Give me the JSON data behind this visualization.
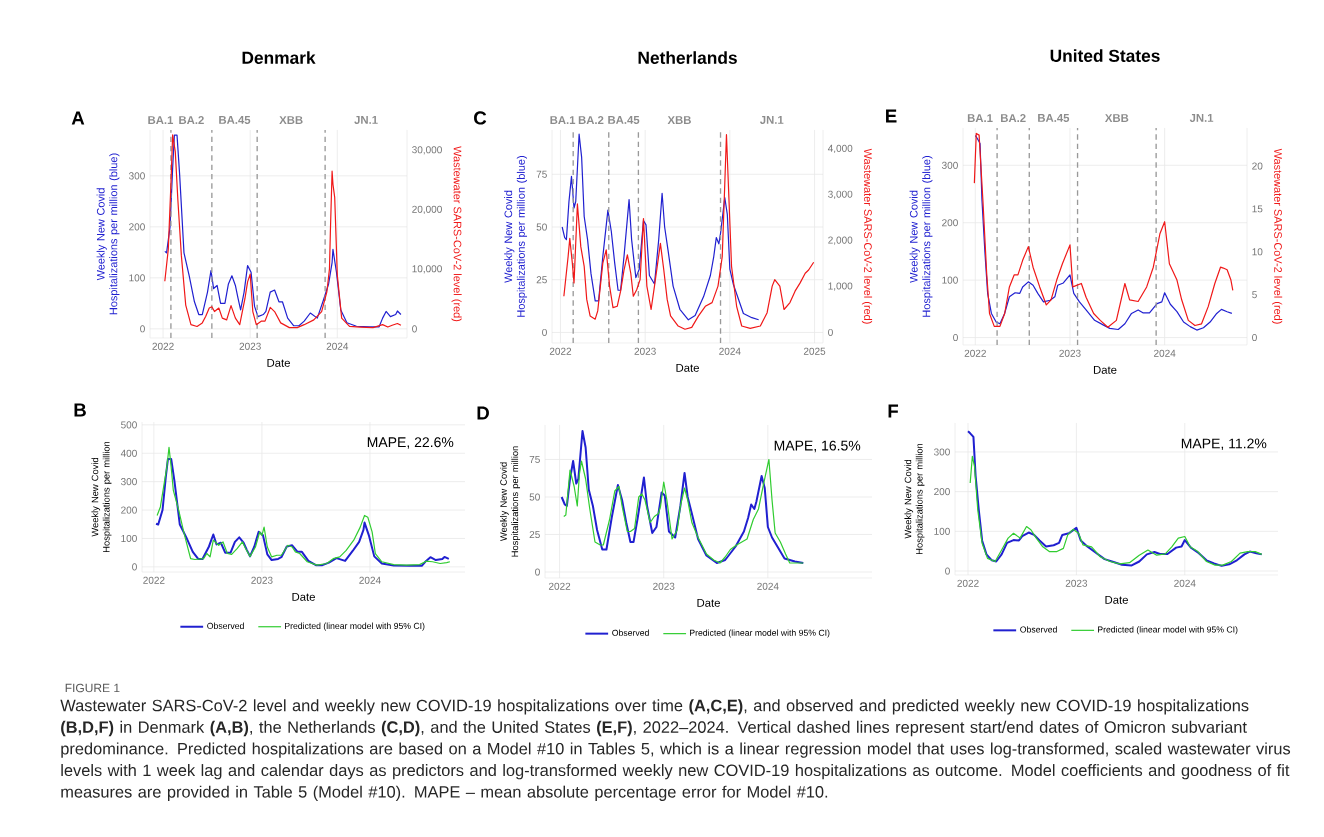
{
  "chart_data": [
    {
      "type": "line",
      "title": "Denmark",
      "xlabel": "Date",
      "ylabel": "Weekly New Covid Hospitalizations per million (blue)",
      "y2label": "Wastewater SARS-CoV-2 level (red)",
      "xlim": [
        2021.85,
        2024.8
      ],
      "xticks": [
        2022,
        2023,
        2024
      ],
      "ylim": [
        -18,
        390
      ],
      "yticks": [
        0,
        100,
        200,
        300
      ],
      "y2lim": [
        -1540,
        33420
      ],
      "y2ticks": [
        0,
        {
          "value": 10000,
          "label": "10,000"
        },
        {
          "value": 20000,
          "label": "20,000"
        },
        {
          "value": 30000,
          "label": "30,000"
        }
      ],
      "grid": true,
      "series": [
        {
          "color": "#2020d0",
          "x": [
            2022.02,
            2022.04,
            2022.08,
            2022.11,
            2022.13,
            2022.16,
            2022.19,
            2022.24,
            2022.3,
            2022.36,
            2022.41,
            2022.45,
            2022.51,
            2022.55,
            2022.58,
            2022.62,
            2022.66,
            2022.71,
            2022.75,
            2022.79,
            2022.83,
            2022.86,
            2022.89,
            2022.93,
            2022.97,
            2023.01,
            2023.05,
            2023.09,
            2023.15,
            2023.18,
            2023.23,
            2023.28,
            2023.33,
            2023.37,
            2023.43,
            2023.5,
            2023.56,
            2023.62,
            2023.69,
            2023.77,
            2023.84,
            2023.9,
            2023.94,
            2023.95,
            2023.99,
            2024.04,
            2024.11,
            2024.22,
            2024.37,
            2024.48,
            2024.52,
            2024.56,
            2024.61,
            2024.67,
            2024.69,
            2024.73
          ],
          "values": [
            152,
            149,
            200,
            316,
            380,
            380,
            303,
            149,
            104,
            53,
            28,
            28,
            72,
            114,
            79,
            85,
            50,
            50,
            88,
            104,
            85,
            60,
            37,
            72,
            124,
            111,
            44,
            24,
            28,
            34,
            72,
            76,
            53,
            53,
            21,
            6,
            6,
            15,
            31,
            21,
            56,
            88,
            130,
            156,
            111,
            37,
            12,
            5,
            4,
            4,
            21,
            34,
            24,
            28,
            35,
            28
          ]
        },
        {
          "color": "#f01818",
          "axis": "y2",
          "x": [
            2022.02,
            2022.06,
            2022.09,
            2022.11,
            2022.14,
            2022.17,
            2022.21,
            2022.26,
            2022.32,
            2022.39,
            2022.45,
            2022.49,
            2022.53,
            2022.56,
            2022.59,
            2022.64,
            2022.68,
            2022.73,
            2022.78,
            2022.83,
            2022.88,
            2022.94,
            2022.97,
            2023.0,
            2023.03,
            2023.07,
            2023.13,
            2023.17,
            2023.23,
            2023.28,
            2023.35,
            2023.45,
            2023.54,
            2023.62,
            2023.73,
            2023.82,
            2023.88,
            2023.91,
            2023.92,
            2023.94,
            2023.95,
            2023.97,
            2024.0,
            2024.05,
            2024.14,
            2024.26,
            2024.41,
            2024.52,
            2024.58,
            2024.63,
            2024.69,
            2024.73
          ],
          "values": [
            8000,
            13400,
            24300,
            32600,
            29800,
            21600,
            12300,
            4000,
            700,
            400,
            1000,
            2100,
            3500,
            3700,
            2900,
            3500,
            1800,
            1500,
            3900,
            1800,
            700,
            5100,
            7900,
            9200,
            2900,
            700,
            1300,
            1300,
            3600,
            2900,
            1000,
            200,
            200,
            700,
            1500,
            2900,
            6200,
            10100,
            16100,
            26500,
            24300,
            22100,
            9000,
            1800,
            400,
            300,
            200,
            700,
            300,
            600,
            900,
            600
          ]
        }
      ],
      "ref_lines": [
        {
          "axis": "x",
          "value": 2022.09,
          "line_style": "dashed",
          "color": "#999999"
        },
        {
          "axis": "x",
          "value": 2022.56,
          "line_style": "dashed",
          "color": "#999999"
        },
        {
          "axis": "x",
          "value": 2023.08,
          "line_style": "dashed",
          "color": "#999999"
        },
        {
          "axis": "x",
          "value": 2023.86,
          "line_style": "dashed",
          "color": "#999999"
        }
      ],
      "annotations": [
        "A",
        "BA.1",
        "BA.2",
        "BA.45",
        "XBB",
        "JN.1"
      ]
    },
    {
      "type": "line",
      "title": "Netherlands",
      "xlabel": "Date",
      "ylabel": "Weekly New Covid Hospitalizations per million (blue)",
      "y2label": "Wastewater SARS-CoV-2 level (red)",
      "xlim": [
        2021.9,
        2025.1
      ],
      "xticks": [
        2022,
        2023,
        2024,
        2025
      ],
      "ylim": [
        -5,
        96
      ],
      "yticks": [
        0,
        25,
        50,
        75
      ],
      "y2lim": [
        -230,
        4412
      ],
      "y2ticks": [
        0,
        {
          "value": 1000,
          "label": "1,000"
        },
        {
          "value": 2000,
          "label": "2,000"
        },
        {
          "value": 3000,
          "label": "3,000"
        },
        {
          "value": 4000,
          "label": "4,000"
        }
      ],
      "grid": true,
      "series": [
        {
          "color": "#2020d0",
          "x": [
            2022.02,
            2022.05,
            2022.07,
            2022.1,
            2022.13,
            2022.16,
            2022.18,
            2022.22,
            2022.25,
            2022.28,
            2022.32,
            2022.36,
            2022.41,
            2022.45,
            2022.5,
            2022.56,
            2022.6,
            2022.64,
            2022.68,
            2022.71,
            2022.75,
            2022.81,
            2022.84,
            2022.89,
            2022.93,
            2022.98,
            2023.01,
            2023.05,
            2023.11,
            2023.16,
            2023.2,
            2023.23,
            2023.27,
            2023.33,
            2023.41,
            2023.51,
            2023.59,
            2023.69,
            2023.77,
            2023.81,
            2023.84,
            2023.87,
            2023.89,
            2023.94,
            2023.97,
            2024.0,
            2024.04,
            2024.1,
            2024.16,
            2024.26,
            2024.34
          ],
          "values": [
            50,
            45,
            44,
            62,
            74,
            59,
            62,
            94,
            83,
            55,
            44,
            28,
            15,
            15,
            36,
            58,
            48,
            33,
            20,
            20,
            36,
            63,
            44,
            26,
            30,
            53,
            51,
            27,
            23,
            44,
            66,
            50,
            39,
            22,
            11,
            6,
            8,
            17,
            27,
            36,
            45,
            42,
            47,
            64,
            56,
            30,
            23,
            16,
            9,
            7,
            6
          ]
        },
        {
          "color": "#f01818",
          "axis": "y2",
          "x": [
            2022.04,
            2022.09,
            2022.11,
            2022.14,
            2022.16,
            2022.2,
            2022.24,
            2022.28,
            2022.31,
            2022.35,
            2022.41,
            2022.44,
            2022.5,
            2022.54,
            2022.58,
            2022.62,
            2022.67,
            2022.71,
            2022.75,
            2022.79,
            2022.83,
            2022.86,
            2022.9,
            2022.94,
            2022.98,
            2023.02,
            2023.07,
            2023.11,
            2023.18,
            2023.22,
            2023.26,
            2023.3,
            2023.39,
            2023.47,
            2023.55,
            2023.63,
            2023.71,
            2023.79,
            2023.86,
            2023.91,
            2023.94,
            2023.96,
            2023.99,
            2024.02,
            2024.08,
            2024.14,
            2024.24,
            2024.36,
            2024.44,
            2024.5,
            2024.53,
            2024.59,
            2024.64,
            2024.71,
            2024.77,
            2024.83,
            2024.89,
            2024.93,
            2024.99
          ],
          "values": [
            790,
            1650,
            2050,
            1510,
            1080,
            2800,
            1870,
            1440,
            720,
            360,
            290,
            470,
            1510,
            1800,
            1010,
            540,
            570,
            900,
            1360,
            1690,
            1290,
            790,
            930,
            1150,
            2480,
            1010,
            500,
            1010,
            1940,
            1360,
            720,
            360,
            140,
            70,
            110,
            360,
            570,
            650,
            1010,
            1650,
            3230,
            4310,
            2870,
            1440,
            570,
            140,
            90,
            140,
            430,
            1010,
            1150,
            1010,
            500,
            650,
            900,
            1080,
            1290,
            1360,
            1530
          ]
        }
      ],
      "ref_lines": [
        {
          "axis": "x",
          "value": 2022.15,
          "line_style": "dashed",
          "color": "#999999"
        },
        {
          "axis": "x",
          "value": 2022.57,
          "line_style": "dashed",
          "color": "#999999"
        },
        {
          "axis": "x",
          "value": 2022.92,
          "line_style": "dashed",
          "color": "#999999"
        },
        {
          "axis": "x",
          "value": 2023.89,
          "line_style": "dashed",
          "color": "#999999"
        }
      ],
      "annotations": [
        "C",
        "BA.1",
        "BA.2",
        "BA.45",
        "XBB",
        "JN.1"
      ]
    },
    {
      "type": "line",
      "title": "United States",
      "xlabel": "Date",
      "ylabel": "Weekly New Covid Hospitalizations per million (blue)",
      "y2label": "Wastewater SARS-CoV-2 level (red)",
      "xlim": [
        2021.87,
        2024.87
      ],
      "xticks": [
        2022,
        2023,
        2024
      ],
      "ylim": [
        -13,
        365
      ],
      "yticks": [
        0,
        100,
        200,
        300
      ],
      "y2lim": [
        -0.87,
        24.43
      ],
      "y2ticks": [
        0,
        5,
        10,
        15,
        20
      ],
      "grid": true,
      "series": [
        {
          "color": "#2020d0",
          "x": [
            2022.0,
            2022.02,
            2022.05,
            2022.07,
            2022.1,
            2022.13,
            2022.17,
            2022.22,
            2022.26,
            2022.31,
            2022.36,
            2022.42,
            2022.47,
            2022.5,
            2022.56,
            2022.61,
            2022.66,
            2022.72,
            2022.79,
            2022.84,
            2022.87,
            2022.93,
            2023.0,
            2023.04,
            2023.1,
            2023.17,
            2023.26,
            2023.35,
            2023.42,
            2023.51,
            2023.58,
            2023.65,
            2023.72,
            2023.77,
            2023.84,
            2023.92,
            2023.97,
            2024.0,
            2024.06,
            2024.13,
            2024.2,
            2024.27,
            2024.34,
            2024.41,
            2024.48,
            2024.55,
            2024.6,
            2024.66,
            2024.71
          ],
          "values": [
            352,
            347,
            338,
            240,
            152,
            77,
            42,
            27,
            24,
            42,
            71,
            78,
            77,
            88,
            97,
            91,
            77,
            62,
            65,
            71,
            91,
            95,
            109,
            77,
            62,
            48,
            30,
            22,
            16,
            14,
            24,
            42,
            48,
            43,
            43,
            59,
            62,
            78,
            58,
            45,
            27,
            19,
            13,
            17,
            27,
            42,
            49,
            45,
            42
          ]
        },
        {
          "color": "#f01818",
          "axis": "y2",
          "x": [
            2021.99,
            2022.01,
            2022.04,
            2022.08,
            2022.12,
            2022.15,
            2022.2,
            2022.26,
            2022.31,
            2022.36,
            2022.41,
            2022.45,
            2022.5,
            2022.56,
            2022.61,
            2022.68,
            2022.75,
            2022.8,
            2022.86,
            2022.92,
            2023.0,
            2023.03,
            2023.12,
            2023.17,
            2023.25,
            2023.32,
            2023.4,
            2023.49,
            2023.58,
            2023.63,
            2023.72,
            2023.81,
            2023.88,
            2023.95,
            2024.0,
            2024.05,
            2024.13,
            2024.18,
            2024.25,
            2024.32,
            2024.39,
            2024.46,
            2024.53,
            2024.59,
            2024.62,
            2024.66,
            2024.7,
            2024.72
          ],
          "values": [
            18,
            23.8,
            23.6,
            16,
            7.5,
            2.8,
            1.3,
            1.3,
            2.8,
            5.9,
            7.3,
            7.3,
            9,
            10.6,
            8.2,
            5.9,
            3.8,
            4.4,
            6.7,
            8.6,
            10.8,
            5.9,
            6.3,
            4.7,
            2.8,
            2,
            1.2,
            2,
            6.3,
            4.4,
            4.2,
            5.9,
            8.2,
            12.1,
            13.5,
            8.6,
            6.7,
            4.4,
            2,
            1.4,
            1.6,
            3.6,
            6.3,
            8.2,
            8.1,
            7.9,
            6.7,
            5.5
          ]
        }
      ],
      "ref_lines": [
        {
          "axis": "x",
          "value": 2022.23,
          "line_style": "dashed",
          "color": "#999999"
        },
        {
          "axis": "x",
          "value": 2022.57,
          "line_style": "dashed",
          "color": "#999999"
        },
        {
          "axis": "x",
          "value": 2023.08,
          "line_style": "dashed",
          "color": "#999999"
        },
        {
          "axis": "x",
          "value": 2023.91,
          "line_style": "dashed",
          "color": "#999999"
        }
      ],
      "annotations": [
        "E",
        "BA.1",
        "BA.2",
        "BA.45",
        "XBB",
        "JN.1"
      ]
    },
    {
      "type": "line",
      "xlabel": "Date",
      "ylabel": "Weekly New Covid Hospitalizations per million",
      "xlim": [
        2021.89,
        2024.88
      ],
      "xticks": [
        2022,
        2023,
        2024
      ],
      "ylim": [
        -18,
        510
      ],
      "yticks": [
        0,
        100,
        200,
        300,
        400,
        500
      ],
      "grid": true,
      "legend": "bottom",
      "series": [
        {
          "name": "Observed",
          "color": "#2020d0",
          "x": [
            2022.02,
            2022.04,
            2022.08,
            2022.11,
            2022.13,
            2022.16,
            2022.19,
            2022.24,
            2022.3,
            2022.36,
            2022.41,
            2022.45,
            2022.51,
            2022.55,
            2022.58,
            2022.62,
            2022.66,
            2022.71,
            2022.75,
            2022.79,
            2022.83,
            2022.86,
            2022.89,
            2022.93,
            2022.97,
            2023.01,
            2023.05,
            2023.09,
            2023.15,
            2023.18,
            2023.23,
            2023.28,
            2023.33,
            2023.37,
            2023.43,
            2023.5,
            2023.56,
            2023.62,
            2023.69,
            2023.77,
            2023.84,
            2023.9,
            2023.94,
            2023.95,
            2023.99,
            2024.04,
            2024.11,
            2024.22,
            2024.37,
            2024.48,
            2024.52,
            2024.56,
            2024.61,
            2024.67,
            2024.69,
            2024.73
          ],
          "values": [
            152,
            149,
            200,
            316,
            380,
            380,
            303,
            149,
            104,
            53,
            28,
            28,
            72,
            114,
            79,
            85,
            50,
            50,
            88,
            104,
            85,
            60,
            37,
            72,
            124,
            111,
            44,
            24,
            28,
            34,
            72,
            76,
            53,
            53,
            21,
            6,
            6,
            15,
            31,
            21,
            56,
            88,
            130,
            156,
            111,
            37,
            12,
            5,
            4,
            4,
            21,
            34,
            24,
            28,
            35,
            28
          ]
        },
        {
          "name": "Predicted (linear model with 95% CI)",
          "color": "#30cc30",
          "x": [
            2022.03,
            2022.06,
            2022.09,
            2022.12,
            2022.14,
            2022.16,
            2022.18,
            2022.23,
            2022.28,
            2022.34,
            2022.38,
            2022.46,
            2022.49,
            2022.52,
            2022.55,
            2022.6,
            2022.64,
            2022.68,
            2022.72,
            2022.77,
            2022.82,
            2022.85,
            2022.89,
            2022.94,
            2022.98,
            2023.0,
            2023.02,
            2023.05,
            2023.09,
            2023.14,
            2023.18,
            2023.24,
            2023.28,
            2023.31,
            2023.35,
            2023.42,
            2023.51,
            2023.6,
            2023.66,
            2023.72,
            2023.78,
            2023.85,
            2023.91,
            2023.95,
            2023.98,
            2024.02,
            2024.05,
            2024.11,
            2024.22,
            2024.34,
            2024.46,
            2024.52,
            2024.58,
            2024.65,
            2024.71,
            2024.74
          ],
          "values": [
            181,
            211,
            281,
            351,
            421,
            351,
            269,
            199,
            117,
            29,
            26,
            29,
            47,
            35,
            94,
            76,
            88,
            47,
            44,
            64,
            88,
            64,
            37,
            70,
            123,
            111,
            140,
            70,
            35,
            41,
            41,
            76,
            70,
            53,
            47,
            18,
            6,
            12,
            29,
            35,
            58,
            94,
            140,
            181,
            175,
            123,
            47,
            18,
            8,
            6,
            8,
            20,
            18,
            12,
            15,
            18
          ]
        }
      ],
      "annotations": [
        "B",
        "MAPE, 22.6%"
      ]
    },
    {
      "type": "line",
      "xlabel": "Date",
      "ylabel": "Weekly New Covid Hospitalizations per million",
      "xlim": [
        2021.86,
        2025.0
      ],
      "xticks": [
        2022,
        2023,
        2024
      ],
      "ylim": [
        -4,
        98
      ],
      "yticks": [
        0,
        25,
        50,
        75
      ],
      "grid": true,
      "legend": "bottom",
      "series": [
        {
          "name": "Observed",
          "color": "#2020d0",
          "x": [
            2022.02,
            2022.05,
            2022.07,
            2022.1,
            2022.13,
            2022.16,
            2022.18,
            2022.22,
            2022.25,
            2022.28,
            2022.32,
            2022.36,
            2022.41,
            2022.45,
            2022.5,
            2022.56,
            2022.6,
            2022.64,
            2022.68,
            2022.71,
            2022.75,
            2022.81,
            2022.84,
            2022.89,
            2022.93,
            2022.98,
            2023.01,
            2023.05,
            2023.11,
            2023.16,
            2023.2,
            2023.23,
            2023.27,
            2023.33,
            2023.41,
            2023.51,
            2023.59,
            2023.69,
            2023.77,
            2023.81,
            2023.84,
            2023.87,
            2023.89,
            2023.94,
            2023.97,
            2024.0,
            2024.04,
            2024.1,
            2024.16,
            2024.26,
            2024.34
          ],
          "values": [
            50,
            45,
            44,
            62,
            74,
            59,
            62,
            94,
            83,
            55,
            44,
            28,
            15,
            15,
            36,
            58,
            48,
            33,
            20,
            20,
            36,
            63,
            44,
            26,
            30,
            53,
            51,
            27,
            23,
            44,
            66,
            50,
            39,
            22,
            11,
            6,
            8,
            17,
            27,
            36,
            45,
            42,
            47,
            64,
            56,
            30,
            23,
            16,
            9,
            7,
            6
          ]
        },
        {
          "name": "Predicted (linear model with 95% CI)",
          "color": "#30cc30",
          "x": [
            2022.04,
            2022.06,
            2022.1,
            2022.14,
            2022.17,
            2022.19,
            2022.21,
            2022.25,
            2022.29,
            2022.34,
            2022.39,
            2022.42,
            2022.48,
            2022.53,
            2022.57,
            2022.6,
            2022.65,
            2022.68,
            2022.72,
            2022.76,
            2022.79,
            2022.82,
            2022.87,
            2022.91,
            2022.95,
            2022.97,
            2023.0,
            2023.03,
            2023.08,
            2023.13,
            2023.16,
            2023.2,
            2023.23,
            2023.27,
            2023.33,
            2023.41,
            2023.48,
            2023.54,
            2023.59,
            2023.64,
            2023.7,
            2023.8,
            2023.86,
            2023.91,
            2023.96,
            2024.01,
            2024.04,
            2024.07,
            2024.12,
            2024.17,
            2024.21,
            2024.28,
            2024.34
          ],
          "values": [
            37,
            38,
            68,
            57,
            44,
            65,
            74,
            62,
            42,
            20,
            18,
            18,
            35,
            54,
            57,
            44,
            27,
            27,
            29,
            50,
            52,
            48,
            33,
            37,
            39,
            44,
            60,
            48,
            22,
            28,
            44,
            56,
            48,
            33,
            23,
            12,
            8,
            6,
            10,
            15,
            18,
            22,
            35,
            42,
            59,
            75,
            48,
            26,
            20,
            12,
            6,
            6,
            6
          ]
        }
      ],
      "annotations": [
        "D",
        "MAPE, 16.5%"
      ]
    },
    {
      "type": "line",
      "xlabel": "Date",
      "ylabel": "Weekly New Covid Hospitalizations per million",
      "xlim": [
        2021.88,
        2024.86
      ],
      "xticks": [
        2022,
        2023,
        2024
      ],
      "ylim": [
        -10,
        373
      ],
      "yticks": [
        0,
        100,
        200,
        300
      ],
      "grid": true,
      "legend": "bottom",
      "series": [
        {
          "name": "Observed",
          "color": "#2020d0",
          "x": [
            2022.0,
            2022.02,
            2022.05,
            2022.07,
            2022.1,
            2022.13,
            2022.17,
            2022.22,
            2022.26,
            2022.31,
            2022.36,
            2022.42,
            2022.47,
            2022.5,
            2022.56,
            2022.61,
            2022.66,
            2022.72,
            2022.79,
            2022.84,
            2022.87,
            2022.93,
            2023.0,
            2023.04,
            2023.1,
            2023.17,
            2023.26,
            2023.35,
            2023.42,
            2023.51,
            2023.58,
            2023.65,
            2023.72,
            2023.77,
            2023.84,
            2023.92,
            2023.97,
            2024.0,
            2024.06,
            2024.13,
            2024.2,
            2024.27,
            2024.34,
            2024.41,
            2024.48,
            2024.55,
            2024.6,
            2024.66,
            2024.71
          ],
          "values": [
            352,
            347,
            338,
            240,
            152,
            77,
            42,
            27,
            24,
            42,
            71,
            78,
            77,
            88,
            97,
            91,
            77,
            62,
            65,
            71,
            91,
            95,
            109,
            77,
            62,
            48,
            30,
            22,
            16,
            14,
            24,
            42,
            48,
            43,
            43,
            59,
            62,
            78,
            58,
            45,
            27,
            19,
            13,
            17,
            27,
            42,
            49,
            45,
            42
          ]
        },
        {
          "name": "Predicted (linear model with 95% CI)",
          "color": "#30cc30",
          "x": [
            2022.02,
            2022.04,
            2022.06,
            2022.09,
            2022.13,
            2022.18,
            2022.25,
            2022.31,
            2022.37,
            2022.42,
            2022.48,
            2022.54,
            2022.58,
            2022.63,
            2022.69,
            2022.75,
            2022.82,
            2022.88,
            2022.92,
            2022.97,
            2023.02,
            2023.06,
            2023.14,
            2023.22,
            2023.31,
            2023.4,
            2023.49,
            2023.58,
            2023.66,
            2023.74,
            2023.82,
            2023.88,
            2023.94,
            2024.0,
            2024.05,
            2024.12,
            2024.2,
            2024.28,
            2024.35,
            2024.43,
            2024.51,
            2024.58,
            2024.65,
            2024.71
          ],
          "values": [
            222,
            289,
            264,
            154,
            70,
            32,
            24,
            53,
            83,
            95,
            83,
            112,
            104,
            83,
            61,
            49,
            49,
            57,
            91,
            105,
            95,
            66,
            61,
            36,
            24,
            18,
            21,
            40,
            53,
            40,
            43,
            61,
            83,
            87,
            61,
            49,
            24,
            15,
            15,
            24,
            45,
            49,
            49,
            42
          ]
        }
      ],
      "annotations": [
        "F",
        "MAPE, 11.2%",
        "FIGURE 1",
        "Wastewater SARS-CoV-2 level and weekly new COVID-19 hospitalizations over time **(A,C,E)**, and observed and predicted weekly new COVID-19 hospitalizations **(B,D,F)** in Denmark **(A,B)**, the Netherlands **(C,D)**, and the United States **(E,F)**, 2022–2024. Vertical dashed lines represent start/end dates of Omicron subvariant predominance. Predicted hospitalizations are based on a Model #10 in Tables 5, which is a linear regression model that uses log-transformed, scaled wastewater virus levels with 1 week lag and calendar days as predictors and log-transformed weekly new COVID-19 hospitalizations as outcome. Model coefficients and goodness of fit measures are provided in Table 5 (Model #10). MAPE – mean absolute percentage error for Model #10."
      ]
    }
  ]
}
